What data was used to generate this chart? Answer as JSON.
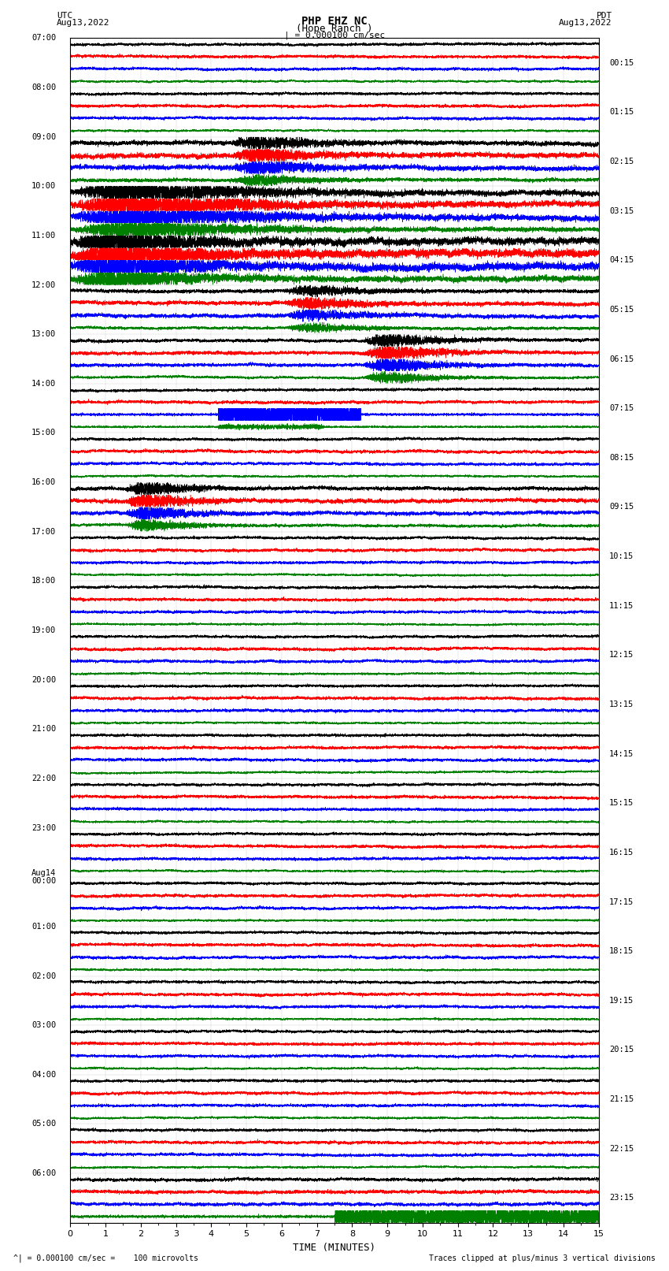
{
  "title_line1": "PHP EHZ NC",
  "title_line2": "(Hope Ranch )",
  "title_scale": "| = 0.000100 cm/sec",
  "label_left_top": "UTC",
  "label_left_date": "Aug13,2022",
  "label_right_top": "PDT",
  "label_right_date": "Aug13,2022",
  "xlabel": "TIME (MINUTES)",
  "footer_left": "^| = 0.000100 cm/sec =    100 microvolts",
  "footer_right": "Traces clipped at plus/minus 3 vertical divisions",
  "colors": [
    "black",
    "red",
    "blue",
    "green"
  ],
  "bgcolor": "white",
  "xmin": 0,
  "xmax": 15,
  "left_times_utc": [
    "07:00",
    "08:00",
    "09:00",
    "10:00",
    "11:00",
    "12:00",
    "13:00",
    "14:00",
    "15:00",
    "16:00",
    "17:00",
    "18:00",
    "19:00",
    "20:00",
    "21:00",
    "22:00",
    "23:00",
    "Aug14\n00:00",
    "01:00",
    "02:00",
    "03:00",
    "04:00",
    "05:00",
    "06:00"
  ],
  "right_times_pdt": [
    "00:15",
    "01:15",
    "02:15",
    "03:15",
    "04:15",
    "05:15",
    "06:15",
    "07:15",
    "08:15",
    "09:15",
    "10:15",
    "11:15",
    "12:15",
    "13:15",
    "14:15",
    "15:15",
    "16:15",
    "17:15",
    "18:15",
    "19:15",
    "20:15",
    "21:15",
    "22:15",
    "23:15"
  ],
  "seed": 42
}
